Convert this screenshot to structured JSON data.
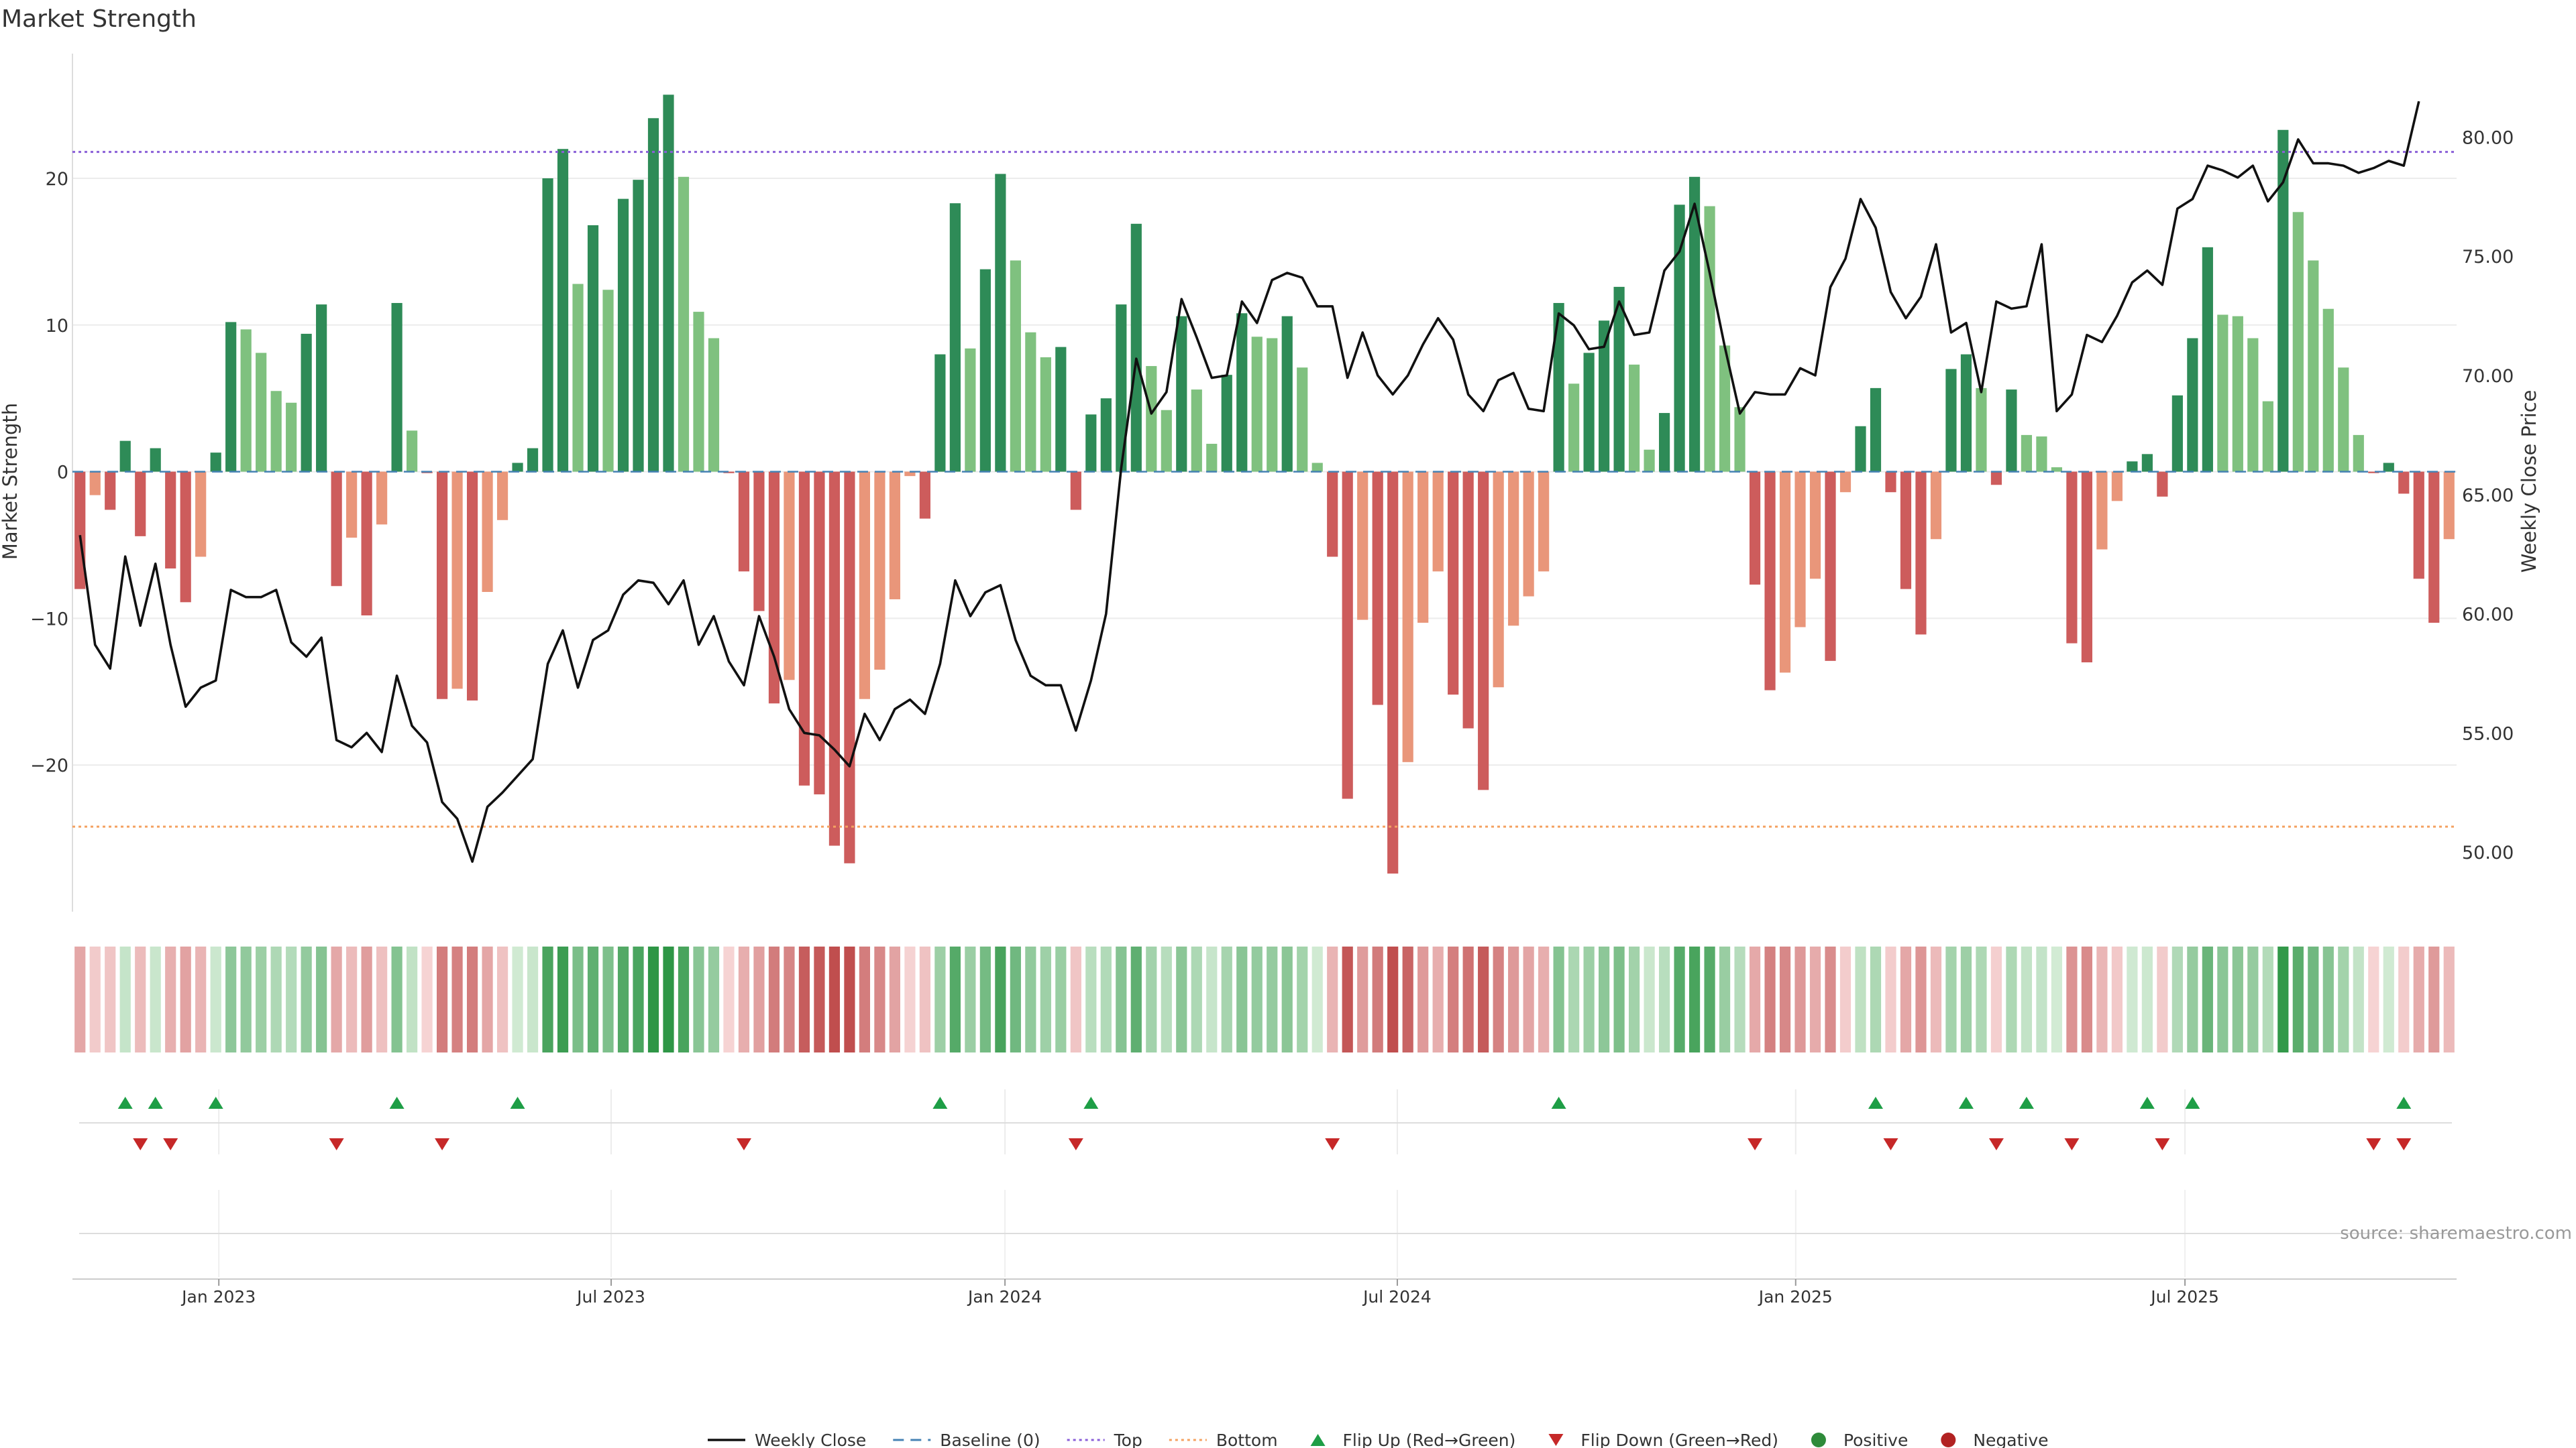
{
  "chart_data": {
    "type": "bar",
    "title": "Market Strength",
    "ylabel": "Market Strength",
    "y2label": "Weekly Close Price",
    "ylim": [
      -30,
      28.5
    ],
    "y2lim": [
      47.5,
      83.5
    ],
    "yticks": [
      -20,
      -10,
      0,
      10,
      20
    ],
    "y2ticks": [
      50,
      55,
      60,
      65,
      70,
      75,
      80
    ],
    "y2tick_labels": [
      "50.00",
      "55.00",
      "60.00",
      "65.00",
      "70.00",
      "75.00",
      "80.00"
    ],
    "x_ticks": [
      {
        "label": "Jan 2023",
        "index": 9.7
      },
      {
        "label": "Jul 2023",
        "index": 35.7
      },
      {
        "label": "Jan 2024",
        "index": 61.8
      },
      {
        "label": "Jul 2024",
        "index": 87.8
      },
      {
        "label": "Jan 2025",
        "index": 114.2
      },
      {
        "label": "Jul 2025",
        "index": 140.0
      }
    ],
    "top_threshold": 21.8,
    "bottom_threshold": -24.2,
    "baseline": 0,
    "strength": [
      -8,
      -1.6,
      -2.6,
      2.1,
      -4.4,
      1.6,
      -6.6,
      -8.9,
      -5.8,
      1.3,
      10.2,
      9.7,
      8.1,
      5.5,
      4.7,
      9.4,
      11.4,
      -7.8,
      -4.5,
      -9.8,
      -3.6,
      11.5,
      2.8,
      -0.1,
      -15.5,
      -14.8,
      -15.6,
      -8.2,
      -3.3,
      0.6,
      1.6,
      20,
      22,
      12.8,
      16.8,
      12.4,
      18.6,
      19.9,
      24.1,
      25.7,
      20.1,
      10.9,
      9.1,
      -0.1,
      -6.8,
      -9.5,
      -15.8,
      -14.2,
      -21.4,
      -22,
      -25.5,
      -26.7,
      -15.5,
      -13.5,
      -8.7,
      -0.3,
      -3.2,
      8,
      18.3,
      8.4,
      13.8,
      20.3,
      14.4,
      9.5,
      7.8,
      8.5,
      -2.6,
      3.9,
      5,
      11.4,
      16.9,
      7.2,
      4.2,
      10.6,
      5.6,
      1.9,
      6.6,
      10.8,
      9.2,
      9.1,
      10.6,
      7.1,
      0.6,
      -5.8,
      -22.3,
      -10.1,
      -15.9,
      -27.4,
      -19.8,
      -10.3,
      -6.8,
      -15.2,
      -17.5,
      -21.7,
      -14.7,
      -10.5,
      -8.5,
      -6.8,
      11.5,
      6,
      8.1,
      10.3,
      12.6,
      7.3,
      1.5,
      4,
      18.2,
      20.1,
      18.1,
      8.6,
      4.4,
      -7.7,
      -14.9,
      -13.7,
      -10.6,
      -7.3,
      -12.9,
      -1.4,
      3.1,
      5.7,
      -1.4,
      -8,
      -11.1,
      -4.6,
      7,
      8,
      5.7,
      -0.9,
      5.6,
      2.5,
      2.4,
      0.3,
      -11.7,
      -13,
      -5.3,
      -2,
      0.7,
      1.2,
      -1.7,
      5.2,
      9.1,
      15.3,
      10.7,
      10.6,
      9.1,
      4.8,
      23.3,
      17.7,
      14.4,
      11.1,
      7.1,
      2.5,
      -0.1,
      0.6,
      -1.5,
      -7.3,
      -10.3,
      -4.6
    ],
    "close": [
      63.3,
      58.7,
      57.7,
      62.4,
      59.5,
      62.1,
      58.7,
      56.1,
      56.9,
      57.2,
      61,
      60.7,
      60.7,
      61,
      58.8,
      58.2,
      59,
      54.7,
      54.4,
      55,
      54.2,
      57.4,
      55.3,
      54.6,
      52.1,
      51.4,
      49.6,
      51.9,
      52.5,
      53.2,
      53.9,
      57.9,
      59.3,
      56.9,
      58.9,
      59.3,
      60.8,
      61.4,
      61.3,
      60.4,
      61.4,
      58.7,
      59.9,
      58,
      57,
      59.9,
      58.2,
      56,
      55,
      54.9,
      54.3,
      53.6,
      55.8,
      54.7,
      56,
      56.4,
      55.8,
      57.9,
      61.4,
      59.9,
      60.9,
      61.2,
      58.9,
      57.4,
      57,
      57,
      55.1,
      57.2,
      60,
      66.1,
      70.7,
      68.4,
      69.3,
      73.2,
      71.6,
      69.9,
      70,
      73.1,
      72.2,
      74,
      74.3,
      74.1,
      72.9,
      72.9,
      69.9,
      71.8,
      70,
      69.2,
      70,
      71.3,
      72.4,
      71.5,
      69.2,
      68.5,
      69.8,
      70.1,
      68.6,
      68.5,
      72.6,
      72.1,
      71.1,
      71.2,
      73.1,
      71.7,
      71.8,
      74.4,
      75.2,
      77.2,
      74.3,
      71.2,
      68.4,
      69.3,
      69.2,
      69.2,
      70.3,
      70,
      73.7,
      74.9,
      77.4,
      76.2,
      73.5,
      72.4,
      73.3,
      75.5,
      71.8,
      72.2,
      69.3,
      73.1,
      72.8,
      72.9,
      75.5,
      68.5,
      69.2,
      71.7,
      71.4,
      72.5,
      73.9,
      74.4,
      73.8,
      77,
      77.4,
      78.8,
      78.6,
      78.3,
      78.8,
      77.3,
      78.1,
      79.9,
      78.9,
      78.9,
      78.8,
      78.5,
      78.7,
      79,
      78.8,
      81.5
    ],
    "flip_up": [
      3,
      5,
      9,
      21,
      29,
      57,
      67,
      98,
      119,
      125,
      129,
      137,
      140,
      154
    ],
    "flip_down": [
      4,
      6,
      17,
      24,
      44,
      66,
      83,
      111,
      120,
      127,
      132,
      138,
      152,
      154
    ],
    "source": "source: sharemaestro.com",
    "legend": [
      {
        "label": "Weekly Close",
        "kind": "line",
        "color": "#111111"
      },
      {
        "label": "Baseline (0)",
        "kind": "dash",
        "color": "#4682b4"
      },
      {
        "label": "Top",
        "kind": "dot",
        "color": "#8a5fd8"
      },
      {
        "label": "Bottom",
        "kind": "dot",
        "color": "#f4a261"
      },
      {
        "label": "Flip Up (Red→Green)",
        "kind": "tri-up",
        "color": "#1e9e46"
      },
      {
        "label": "Flip Down (Green→Red)",
        "kind": "tri-down",
        "color": "#c62828"
      },
      {
        "label": "Positive",
        "kind": "circle",
        "color": "#2e8b3a"
      },
      {
        "label": "Negative",
        "kind": "circle",
        "color": "#b22222"
      }
    ]
  },
  "colors": {
    "green_strong": "#2e8b57",
    "green_light": "#7fc17f",
    "red_strong": "#cd5c5c",
    "red_light": "#e9967a",
    "top": "#8a5fd8",
    "bottom": "#f4a261",
    "baseline": "#4682b4",
    "price": "#111111",
    "grid": "#ececec"
  }
}
